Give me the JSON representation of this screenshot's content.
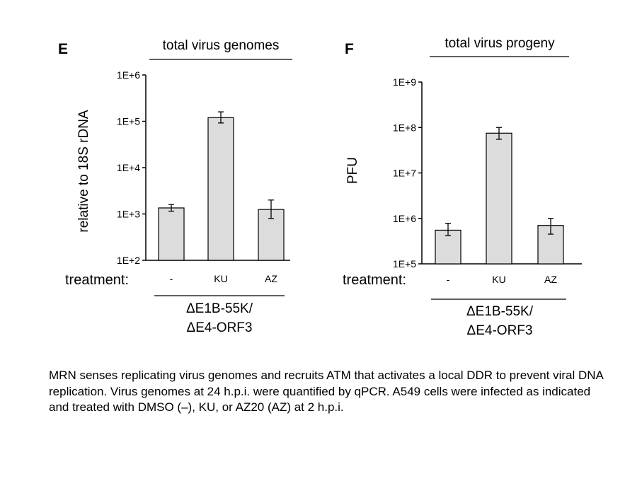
{
  "chart_data": [
    {
      "type": "bar",
      "panel": "E",
      "title": "total virus genomes",
      "ylabel": "relative to 18S rDNA",
      "xlabel": "treatment:",
      "group_label": [
        "ΔE1B-55K/",
        "ΔE4-ORF3"
      ],
      "categories": [
        "-",
        "KU",
        "AZ"
      ],
      "values": [
        1350,
        120000,
        1250
      ],
      "error_low": [
        1150,
        92000,
        800
      ],
      "error_high": [
        1600,
        160000,
        2000
      ],
      "yscale": "log",
      "ylim": [
        100,
        1000000
      ],
      "yticks": [
        100,
        1000,
        10000,
        100000,
        1000000
      ],
      "ytick_labels": [
        "1E+2",
        "1E+3",
        "1E+4",
        "1E+5",
        "1E+6"
      ],
      "grid": false,
      "legend": false
    },
    {
      "type": "bar",
      "panel": "F",
      "title": "total virus progeny",
      "ylabel": "PFU",
      "xlabel": "treatment:",
      "group_label": [
        "ΔE1B-55K/",
        "ΔE4-ORF3"
      ],
      "categories": [
        "-",
        "KU",
        "AZ"
      ],
      "values": [
        550000,
        75000000,
        700000
      ],
      "error_low": [
        420000,
        55000000,
        450000
      ],
      "error_high": [
        780000,
        100000000,
        1000000
      ],
      "yscale": "log",
      "ylim": [
        100000,
        1000000000
      ],
      "yticks": [
        100000,
        1000000,
        10000000,
        100000000,
        1000000000
      ],
      "ytick_labels": [
        "1E+5",
        "1E+6",
        "1E+7",
        "1E+8",
        "1E+9"
      ],
      "grid": false,
      "legend": false
    }
  ],
  "caption": "MRN senses replicating virus genomes and recruits ATM that activates a local DDR to prevent viral DNA replication. Virus genomes at 24 h.p.i. were quantified by qPCR. A549 cells were infected as indicated and treated with DMSO (–), KU, or AZ20 (AZ) at 2 h.p.i."
}
